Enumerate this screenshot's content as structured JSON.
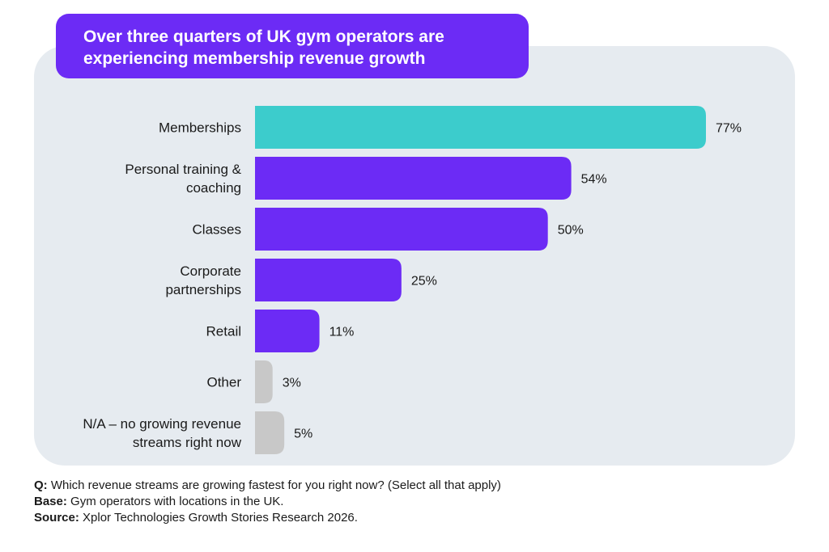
{
  "title": {
    "line1": "Over three quarters of UK gym operators are",
    "line2": "experiencing membership revenue growth"
  },
  "chart_data": {
    "type": "bar",
    "orientation": "horizontal",
    "categories": [
      [
        "Memberships"
      ],
      [
        "Personal training &",
        "coaching"
      ],
      [
        "Classes"
      ],
      [
        "Corporate",
        "partnerships"
      ],
      [
        "Retail"
      ],
      [
        "Other"
      ],
      [
        "N/A – no growing revenue",
        "streams right now"
      ]
    ],
    "values": [
      77,
      54,
      50,
      25,
      11,
      3,
      5
    ],
    "value_labels": [
      "77%",
      "54%",
      "50%",
      "25%",
      "11%",
      "3%",
      "5%"
    ],
    "xlim": [
      0,
      100
    ],
    "grid": false,
    "colors": [
      "#3ccccc",
      "#6c2bf5",
      "#6c2bf5",
      "#6c2bf5",
      "#6c2bf5",
      "#c8c8c8",
      "#c8c8c8"
    ]
  },
  "footer": {
    "q_label": "Q:",
    "q_text": " Which revenue streams are growing fastest for you right now? (Select all that apply)",
    "base_label": "Base:",
    "base_text": " Gym operators with locations in the UK.",
    "source_label": "Source:",
    "source_text": " Xplor Technologies Growth Stories Research 2026."
  }
}
